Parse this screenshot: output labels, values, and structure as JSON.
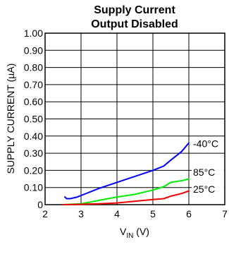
{
  "chart_data": {
    "type": "line",
    "title_line1": "Supply Current",
    "title_line2": "Output Disabled",
    "xlabel_main": "V",
    "xlabel_sub": "IN",
    "xlabel_unit": " (V)",
    "ylabel": "SUPPLY CURRENT (µA)",
    "xlim": [
      2,
      7
    ],
    "ylim": [
      0,
      1.0
    ],
    "x_ticks": [
      "2",
      "3",
      "4",
      "5",
      "6",
      "7"
    ],
    "y_ticks": [
      "0",
      "0.10",
      "0.20",
      "0.30",
      "0.40",
      "0.50",
      "0.60",
      "0.70",
      "0.80",
      "0.90",
      "1.00"
    ],
    "grid": true,
    "series": [
      {
        "name": "-40°C",
        "color": "#0000ff",
        "points": [
          [
            2.55,
            0.045
          ],
          [
            2.6,
            0.035
          ],
          [
            2.7,
            0.035
          ],
          [
            2.9,
            0.045
          ],
          [
            3.2,
            0.07
          ],
          [
            3.5,
            0.095
          ],
          [
            4.0,
            0.13
          ],
          [
            4.5,
            0.165
          ],
          [
            5.0,
            0.2
          ],
          [
            5.3,
            0.225
          ],
          [
            5.5,
            0.26
          ],
          [
            5.8,
            0.31
          ],
          [
            6.0,
            0.36
          ]
        ]
      },
      {
        "name": "85°C",
        "color": "#00ee00",
        "points": [
          [
            2.5,
            0.0
          ],
          [
            3.0,
            0.005
          ],
          [
            3.5,
            0.025
          ],
          [
            4.0,
            0.045
          ],
          [
            4.5,
            0.06
          ],
          [
            5.0,
            0.085
          ],
          [
            5.3,
            0.105
          ],
          [
            5.5,
            0.13
          ],
          [
            5.8,
            0.14
          ],
          [
            6.0,
            0.15
          ]
        ]
      },
      {
        "name": "25°C",
        "color": "#ee0000",
        "points": [
          [
            2.5,
            0.0
          ],
          [
            3.0,
            0.002
          ],
          [
            3.5,
            0.005
          ],
          [
            4.0,
            0.01
          ],
          [
            4.5,
            0.02
          ],
          [
            5.0,
            0.03
          ],
          [
            5.3,
            0.035
          ],
          [
            5.5,
            0.05
          ],
          [
            5.8,
            0.065
          ],
          [
            6.0,
            0.08
          ]
        ]
      }
    ]
  }
}
